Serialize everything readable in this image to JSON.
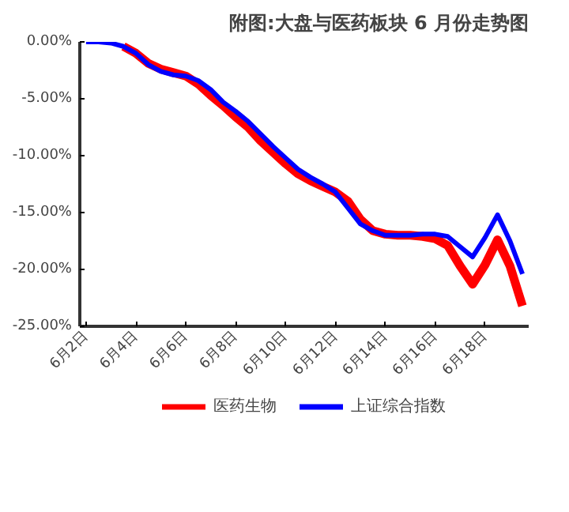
{
  "chart_data": {
    "type": "line",
    "title": "附图:大盘与医药板块 6 月份走势图",
    "categories": [
      "6月2日",
      null,
      null,
      null,
      "6月4日",
      null,
      null,
      null,
      "6月6日",
      null,
      null,
      null,
      "6月8日",
      null,
      null,
      null,
      "6月10日",
      null,
      null,
      null,
      "6月12日",
      null,
      null,
      null,
      "6月14日",
      null,
      null,
      null,
      "6月16日",
      null,
      null,
      null,
      "6月18日",
      null,
      null,
      null
    ],
    "ylim": [
      -25,
      0
    ],
    "yticks": [
      {
        "value": 0,
        "label": "0.00%"
      },
      {
        "value": -5,
        "label": "-5.00%"
      },
      {
        "value": -10,
        "label": "-10.00%"
      },
      {
        "value": -15,
        "label": "-15.00%"
      },
      {
        "value": -20,
        "label": "-20.00%"
      },
      {
        "value": -25,
        "label": "-25.00%"
      }
    ],
    "series": [
      {
        "name": "医药生物",
        "color": "#ff0000",
        "values": [
          null,
          null,
          null,
          -0.4,
          -1.0,
          -1.9,
          -2.4,
          -2.7,
          -3.0,
          -3.7,
          -4.7,
          -5.6,
          -6.6,
          -7.5,
          -8.7,
          -9.7,
          -10.7,
          -11.6,
          -12.2,
          -12.7,
          -13.2,
          -14.0,
          -15.6,
          -16.6,
          -16.9,
          -17.0,
          -17.0,
          -17.1,
          -17.3,
          -17.9,
          -19.7,
          -21.3,
          -19.6,
          -17.4,
          -19.7,
          -23.2
        ]
      },
      {
        "name": "上证综合指数",
        "color": "#0000ff",
        "values": [
          0,
          0,
          -0.1,
          -0.4,
          -1.0,
          -2.0,
          -2.6,
          -2.9,
          -3.0,
          -3.4,
          -4.2,
          -5.3,
          -6.1,
          -7.0,
          -8.1,
          -9.2,
          -10.2,
          -11.2,
          -11.9,
          -12.5,
          -13.2,
          -14.6,
          -16.0,
          -16.6,
          -17.0,
          -17.0,
          -17.0,
          -16.9,
          -16.9,
          -17.1,
          -18.0,
          -18.9,
          -17.2,
          -15.2,
          -17.5,
          -20.4
        ]
      }
    ],
    "grid": false,
    "legend": "bottom",
    "marker": "none",
    "line_style": "solid"
  }
}
